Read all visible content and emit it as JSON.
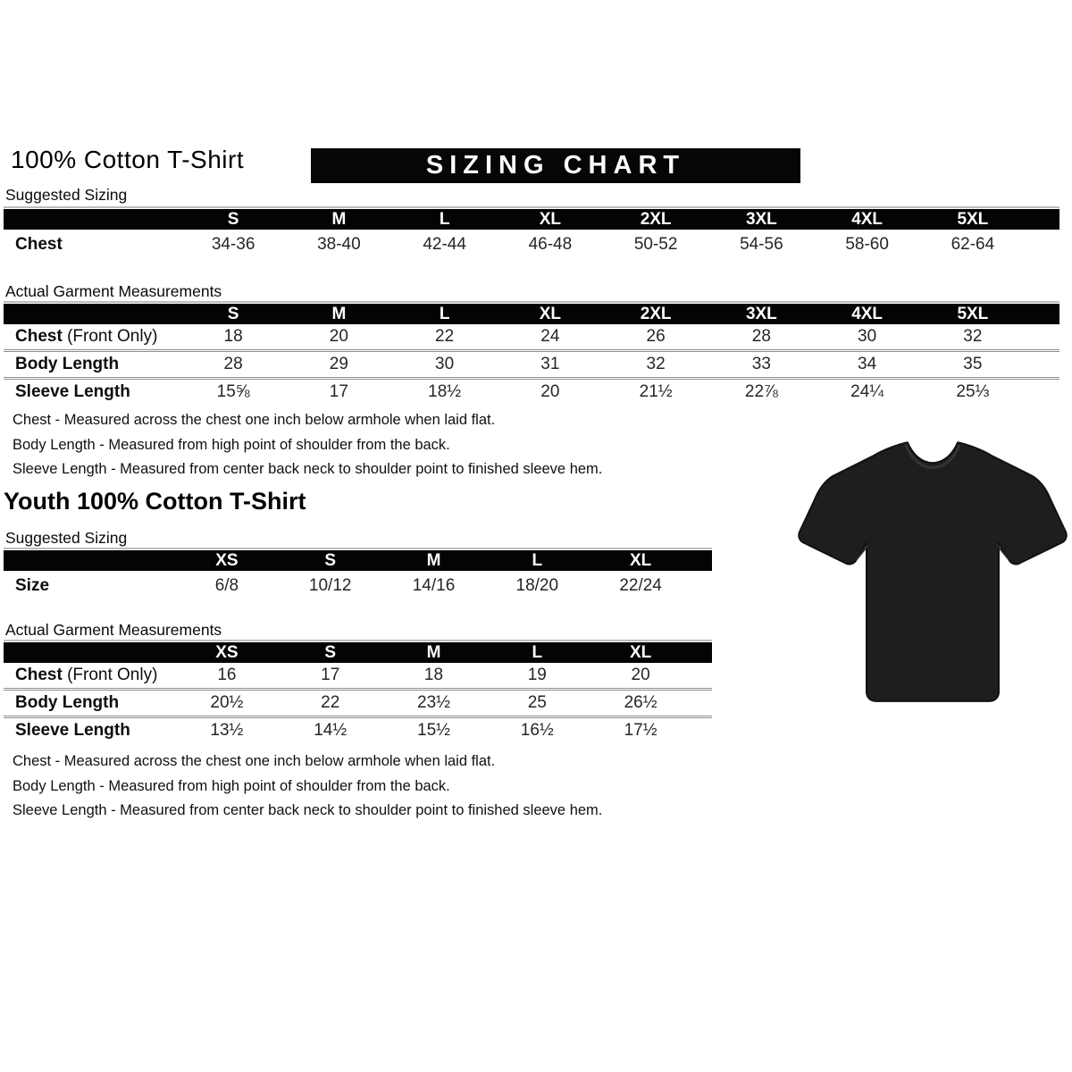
{
  "page": {
    "title": "100% Cotton T-Shirt",
    "banner": "SIZING CHART",
    "youth_title": "Youth 100% Cotton T-Shirt"
  },
  "colors": {
    "banner_bg": "#060606",
    "banner_text": "#ffffff",
    "table_header_bg": "#040404",
    "table_header_text": "#ffffff",
    "body_text": "#000000",
    "tshirt": "#1e1e1e"
  },
  "adult": {
    "suggested": {
      "section_label": "Suggested Sizing",
      "columns": [
        "S",
        "M",
        "L",
        "XL",
        "2XL",
        "3XL",
        "4XL",
        "5XL"
      ],
      "rows": [
        {
          "label": "Chest",
          "suffix": "",
          "values": [
            "34-36",
            "38-40",
            "42-44",
            "46-48",
            "50-52",
            "54-56",
            "58-60",
            "62-64"
          ]
        }
      ]
    },
    "actual": {
      "section_label": "Actual Garment Measurements",
      "columns": [
        "S",
        "M",
        "L",
        "XL",
        "2XL",
        "3XL",
        "4XL",
        "5XL"
      ],
      "rows": [
        {
          "label": "Chest",
          "suffix": "(Front Only)",
          "values": [
            "18",
            "20",
            "22",
            "24",
            "26",
            "28",
            "30",
            "32"
          ]
        },
        {
          "label": "Body Length",
          "suffix": "",
          "values": [
            "28",
            "29",
            "30",
            "31",
            "32",
            "33",
            "34",
            "35"
          ]
        },
        {
          "label": "Sleeve Length",
          "suffix": "",
          "values": [
            "15⅝",
            "17",
            "18½",
            "20",
            "21½",
            "22⅞",
            "24¼",
            "25⅓"
          ]
        }
      ]
    },
    "notes": [
      "Chest - Measured across the chest one inch below armhole when laid flat.",
      "Body Length - Measured from high point of shoulder from the back.",
      "Sleeve Length - Measured from center back neck to shoulder point to finished sleeve hem."
    ]
  },
  "youth": {
    "suggested": {
      "section_label": "Suggested Sizing",
      "columns": [
        "XS",
        "S",
        "M",
        "L",
        "XL"
      ],
      "rows": [
        {
          "label": "Size",
          "suffix": "",
          "values": [
            "6/8",
            "10/12",
            "14/16",
            "18/20",
            "22/24"
          ]
        }
      ]
    },
    "actual": {
      "section_label": "Actual Garment Measurements",
      "columns": [
        "XS",
        "S",
        "M",
        "L",
        "XL"
      ],
      "rows": [
        {
          "label": "Chest",
          "suffix": "(Front Only)",
          "values": [
            "16",
            "17",
            "18",
            "19",
            "20"
          ]
        },
        {
          "label": "Body Length",
          "suffix": "",
          "values": [
            "20½",
            "22",
            "23½",
            "25",
            "26½"
          ]
        },
        {
          "label": "Sleeve Length",
          "suffix": "",
          "values": [
            "13½",
            "14½",
            "15½",
            "16½",
            "17½"
          ]
        }
      ]
    },
    "notes": [
      "Chest - Measured across the chest one inch below armhole when laid flat.",
      "Body Length - Measured from high point of shoulder from the back.",
      "Sleeve Length - Measured from center back neck to shoulder point to finished sleeve hem."
    ]
  },
  "tshirt_image": {
    "alt": "black short-sleeve t-shirt"
  }
}
